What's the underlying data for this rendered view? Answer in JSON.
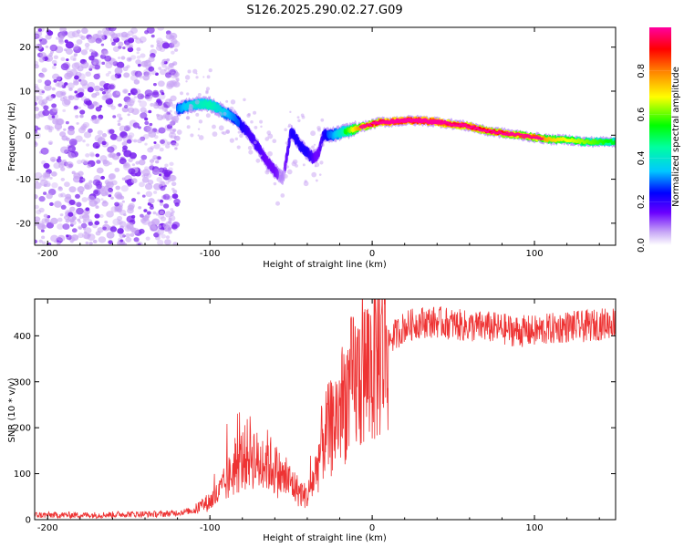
{
  "figure_title": "S126.2025.290.02.27.G09",
  "colors": {
    "snr_line": "#ee3333",
    "noise_blob": "#7a22ee",
    "noise_blob_light": "#c7a2f4",
    "frame": "#000000"
  },
  "chart_data": [
    {
      "type": "heatmap",
      "title": "",
      "xlabel": "Height of straight line (km)",
      "ylabel": "Frequency (Hz)",
      "xlim": [
        -208,
        150
      ],
      "ylim": [
        -25,
        24.5
      ],
      "x_ticks": [
        -200,
        -100,
        0,
        100
      ],
      "y_ticks": [
        -20,
        -10,
        0,
        10,
        20
      ],
      "colorbar": {
        "label": "Normalized spectral amplitude",
        "range": [
          0,
          1
        ],
        "ticks": [
          0.0,
          0.2,
          0.4,
          0.6,
          0.8
        ],
        "colormap": [
          "#ffffff",
          "#b08cf0",
          "#6a00ff",
          "#0000ff",
          "#00d8ff",
          "#00ff80",
          "#44ff00",
          "#ffff00",
          "#ff8000",
          "#ff0000",
          "#ff00a0"
        ]
      },
      "ridge": {
        "description": "frequency track of dominant spectral component",
        "x": [
          -120,
          -110,
          -100,
          -95,
          -90,
          -85,
          -80,
          -75,
          -70,
          -65,
          -60,
          -55,
          -50,
          -45,
          -40,
          -37,
          -35,
          -33,
          -30,
          -25,
          -20,
          -15,
          -10,
          -5,
          0,
          5,
          10,
          20,
          30,
          40,
          50,
          60,
          70,
          80,
          90,
          100,
          110,
          120,
          130,
          140,
          150
        ],
        "y": [
          6,
          7,
          7,
          6,
          5,
          4,
          2,
          0,
          -3,
          -6,
          -8,
          -10,
          1,
          -2,
          -4,
          -5,
          -5,
          -4,
          0,
          0,
          0.5,
          1,
          1.5,
          2,
          2.5,
          3,
          3,
          3.3,
          3.3,
          3,
          2.5,
          2,
          1,
          0.5,
          0,
          -0.5,
          -1,
          -1,
          -1.5,
          -1.5,
          -1.5
        ],
        "amplitude": [
          0.35,
          0.45,
          0.5,
          0.45,
          0.4,
          0.35,
          0.3,
          0.25,
          0.25,
          0.2,
          0.2,
          0.15,
          0.3,
          0.3,
          0.3,
          0.25,
          0.2,
          0.2,
          0.3,
          0.35,
          0.45,
          0.55,
          0.7,
          0.8,
          0.85,
          0.9,
          0.95,
          1.0,
          1.0,
          0.95,
          0.9,
          0.9,
          0.85,
          0.85,
          0.8,
          0.8,
          0.7,
          0.65,
          0.6,
          0.55,
          0.5
        ]
      },
      "noise_region_x": [
        -208,
        -120
      ]
    },
    {
      "type": "line",
      "title": "",
      "xlabel": "Height of straight line (km)",
      "ylabel": "SNR (10 * v/v)",
      "xlim": [
        -208,
        150
      ],
      "ylim": [
        0,
        480
      ],
      "x_ticks": [
        -200,
        -100,
        0,
        100
      ],
      "y_ticks": [
        0,
        100,
        200,
        300,
        400
      ],
      "series": [
        {
          "name": "SNR",
          "x": [
            -208,
            -190,
            -170,
            -150,
            -130,
            -120,
            -110,
            -100,
            -95,
            -90,
            -85,
            -80,
            -75,
            -70,
            -65,
            -60,
            -55,
            -50,
            -45,
            -40,
            -35,
            -30,
            -25,
            -20,
            -15,
            -10,
            -5,
            0,
            5,
            10,
            20,
            30,
            40,
            50,
            60,
            70,
            80,
            90,
            100,
            110,
            120,
            130,
            140,
            150
          ],
          "values": [
            10,
            10,
            10,
            12,
            12,
            15,
            20,
            40,
            55,
            80,
            110,
            130,
            150,
            120,
            130,
            110,
            90,
            80,
            60,
            50,
            100,
            180,
            200,
            240,
            280,
            300,
            320,
            340,
            370,
            390,
            420,
            430,
            430,
            425,
            420,
            420,
            415,
            410,
            410,
            415,
            420,
            420,
            425,
            430
          ]
        }
      ]
    }
  ]
}
